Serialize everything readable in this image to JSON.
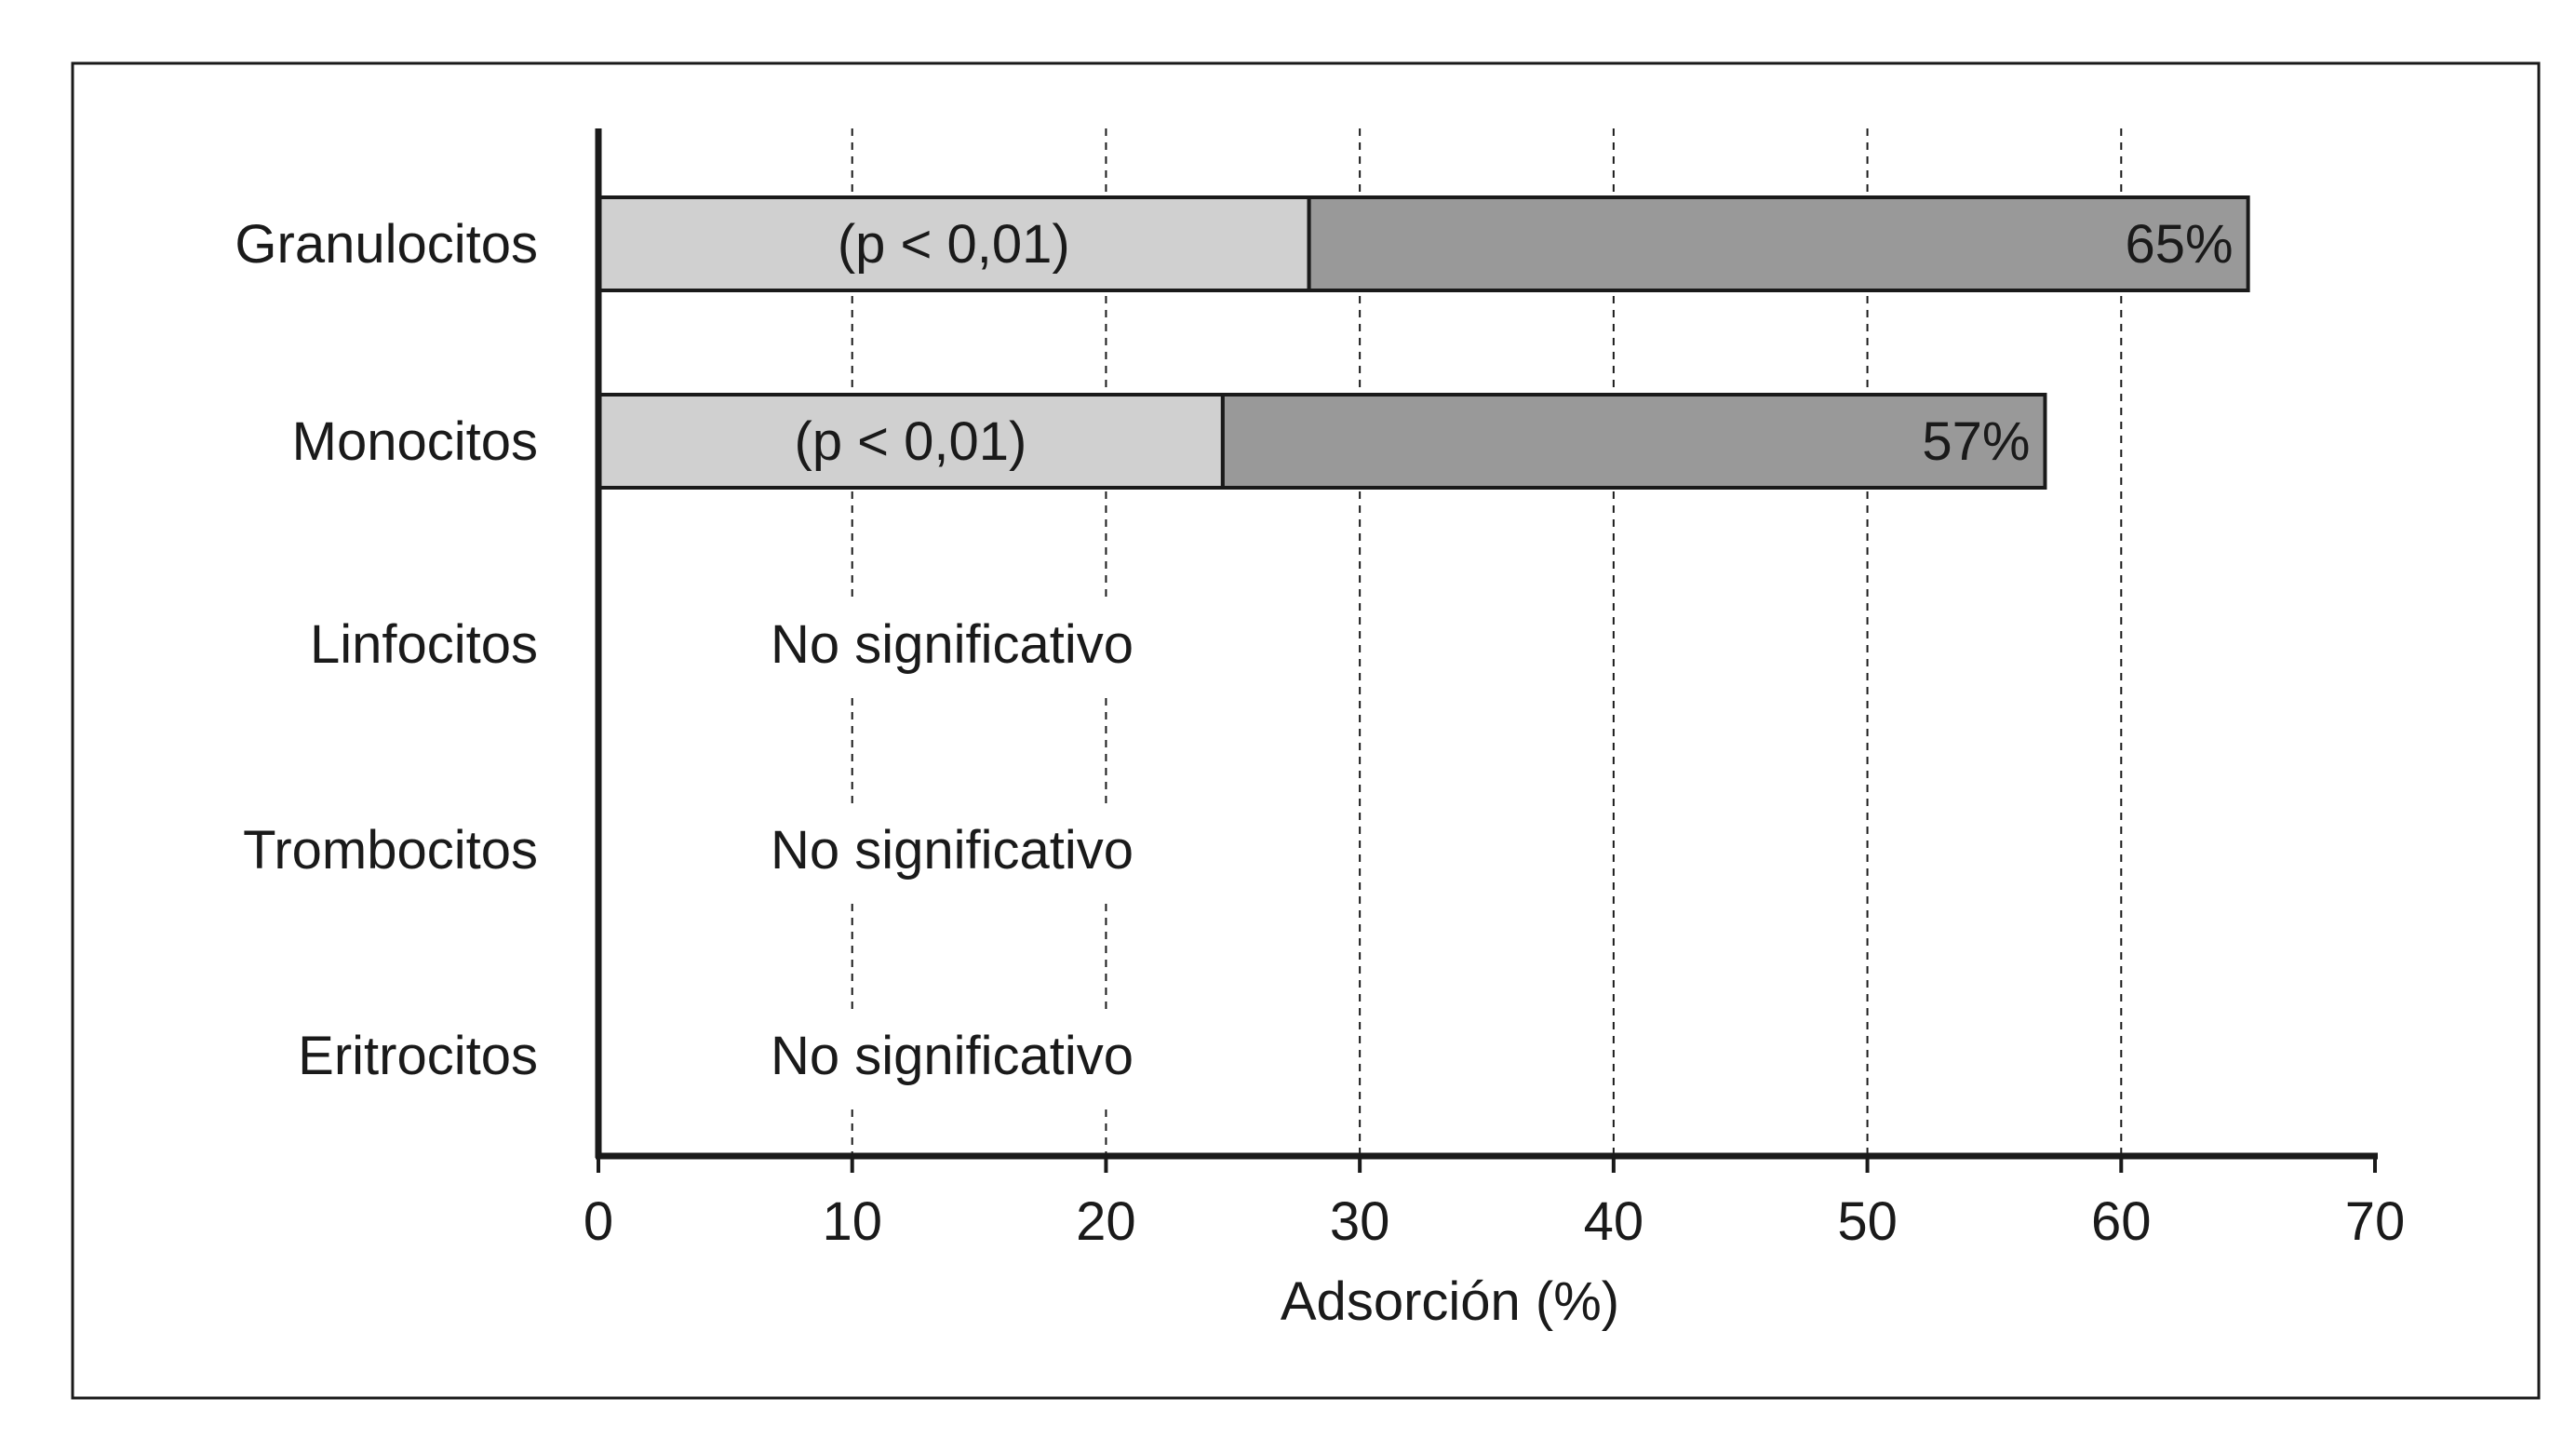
{
  "chart_data": {
    "type": "bar",
    "orientation": "horizontal",
    "stacked": true,
    "categories": [
      "Granulocitos",
      "Monocitos",
      "Linfocitos",
      "Trombocitos",
      "Eritrocitos"
    ],
    "series": [
      {
        "values": [
          28,
          24.6,
          0,
          0,
          0
        ],
        "color": "#d0d0d0"
      },
      {
        "values": [
          37,
          32.4,
          0,
          0,
          0
        ],
        "color": "#999999"
      }
    ],
    "totals": [
      65,
      57,
      null,
      null,
      null
    ],
    "bar_labels_inner": [
      "(p < 0,01)",
      "(p < 0,01)",
      "",
      "",
      ""
    ],
    "bar_labels_total": [
      "65%",
      "57%",
      "",
      "",
      ""
    ],
    "row_notes": [
      "",
      "",
      "No significativo",
      "No significativo",
      "No significativo"
    ],
    "xlabel": "Adsorción (%)",
    "xlim": [
      0,
      70
    ],
    "xticks": [
      0,
      10,
      20,
      30,
      40,
      50,
      60,
      70
    ],
    "grid": "vertical dashed",
    "frame": true
  }
}
